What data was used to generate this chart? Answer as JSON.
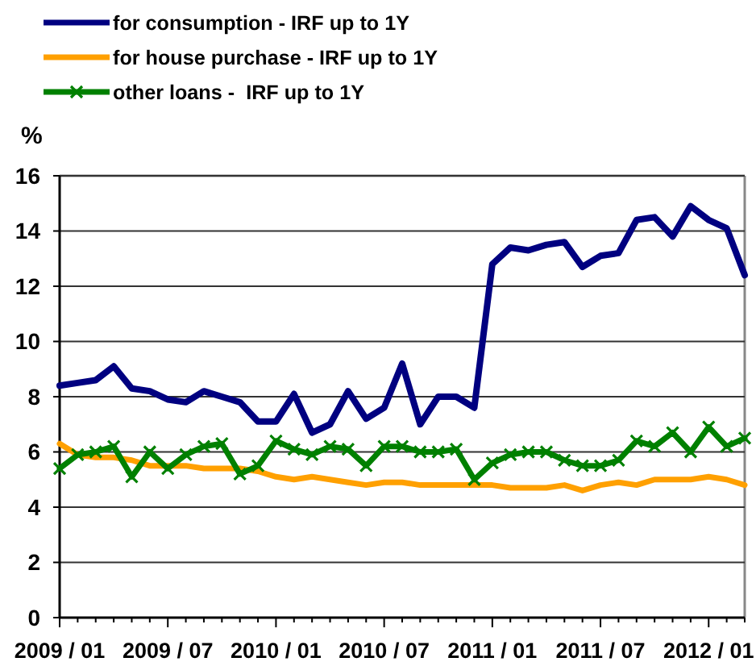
{
  "chart_data": {
    "type": "line",
    "ylabel": "%",
    "legend": "top left",
    "grid": "y",
    "ylim": [
      0,
      16
    ],
    "yticks": [
      0,
      2,
      4,
      6,
      8,
      10,
      12,
      14,
      16
    ],
    "categories": [
      "2009 / 01",
      null,
      null,
      null,
      null,
      null,
      "2009 / 07",
      null,
      null,
      null,
      null,
      null,
      "2010 / 01",
      null,
      null,
      null,
      null,
      null,
      "2010 / 07",
      null,
      null,
      null,
      null,
      null,
      "2011 / 01",
      null,
      null,
      null,
      null,
      null,
      "2011 / 07",
      null,
      null,
      null,
      null,
      null,
      "2012 / 01",
      null,
      null
    ],
    "series": [
      {
        "name": "for consumption - IRF up to 1Y",
        "color": "#000080",
        "marker": "none",
        "line_style": "solid",
        "values": [
          8.4,
          8.5,
          8.6,
          9.1,
          8.3,
          8.2,
          7.9,
          7.8,
          8.2,
          8.0,
          7.8,
          7.1,
          7.1,
          8.1,
          6.7,
          7.0,
          8.2,
          7.2,
          7.6,
          9.2,
          7.0,
          8.0,
          8.0,
          7.6,
          12.8,
          13.4,
          13.3,
          13.5,
          13.6,
          12.7,
          13.1,
          13.2,
          14.4,
          14.5,
          13.8,
          14.9,
          14.4,
          14.1,
          12.4
        ]
      },
      {
        "name": "for house purchase - IRF up to 1Y",
        "color": "#ffa000",
        "marker": "none",
        "line_style": "solid",
        "values": [
          6.3,
          5.9,
          5.8,
          5.8,
          5.7,
          5.5,
          5.5,
          5.5,
          5.4,
          5.4,
          5.4,
          5.3,
          5.1,
          5.0,
          5.1,
          5.0,
          4.9,
          4.8,
          4.9,
          4.9,
          4.8,
          4.8,
          4.8,
          4.8,
          4.8,
          4.7,
          4.7,
          4.7,
          4.8,
          4.6,
          4.8,
          4.9,
          4.8,
          5.0,
          5.0,
          5.0,
          5.1,
          5.0,
          4.8
        ]
      },
      {
        "name": "other loans -  IRF up to 1Y",
        "color": "#008000",
        "marker": "cross",
        "line_style": "solid",
        "values": [
          5.4,
          5.9,
          6.0,
          6.2,
          5.1,
          6.0,
          5.4,
          5.9,
          6.2,
          6.3,
          5.2,
          5.5,
          6.4,
          6.1,
          5.9,
          6.2,
          6.1,
          5.5,
          6.2,
          6.2,
          6.0,
          6.0,
          6.1,
          5.0,
          5.6,
          5.9,
          6.0,
          6.0,
          5.7,
          5.5,
          5.5,
          5.7,
          6.4,
          6.2,
          6.7,
          6.0,
          6.9,
          6.2,
          6.5
        ]
      }
    ]
  }
}
